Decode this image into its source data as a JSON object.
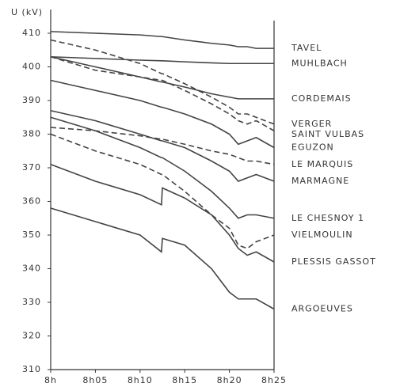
{
  "chart_data": {
    "type": "line",
    "ylabel": "U (kV)",
    "x": [
      0,
      5,
      10,
      12.4,
      12.5,
      15,
      18,
      20,
      21,
      22,
      23,
      25
    ],
    "xlim": [
      0,
      25
    ],
    "xticks": [
      {
        "value": 0,
        "label": "8h"
      },
      {
        "value": 5,
        "label": "8h05"
      },
      {
        "value": 10,
        "label": "8h10"
      },
      {
        "value": 15,
        "label": "8h15"
      },
      {
        "value": 20,
        "label": "8h20"
      },
      {
        "value": 25,
        "label": "8h25"
      }
    ],
    "ylim": [
      310,
      410
    ],
    "yticks": [
      310,
      320,
      330,
      340,
      350,
      360,
      370,
      380,
      390,
      400,
      410
    ],
    "series": [
      {
        "name": "TAVEL",
        "color": "#444",
        "dashed": false,
        "values": [
          410.5,
          410,
          409.5,
          409,
          409,
          408,
          407,
          406.5,
          406,
          406,
          405.5,
          405.5
        ]
      },
      {
        "name": "MUHLBACH",
        "color": "#444",
        "dashed": false,
        "values": [
          403,
          402.5,
          402,
          401.8,
          401.8,
          401.5,
          401.2,
          401,
          401,
          401,
          401,
          401
        ]
      },
      {
        "name": "CORDEMAIS",
        "color": "#444",
        "dashed": false,
        "values": [
          403,
          400,
          397,
          395.5,
          395.5,
          394,
          392,
          391,
          390.5,
          390.5,
          390.5,
          390.5
        ]
      },
      {
        "name": "VERGER",
        "color": "#444",
        "dashed": true,
        "values": [
          408,
          405,
          401,
          398,
          398,
          395,
          391,
          388,
          386,
          386,
          385,
          383
        ]
      },
      {
        "name": "SAINT VULBAS",
        "color": "#444",
        "dashed": true,
        "values": [
          403,
          399,
          397,
          396,
          396,
          393,
          389,
          386,
          384,
          383,
          384,
          381
        ]
      },
      {
        "name": "EGUZON",
        "color": "#444",
        "dashed": false,
        "values": [
          396,
          393,
          390,
          388,
          388,
          386,
          383,
          380,
          377,
          378,
          379,
          376
        ]
      },
      {
        "name": "LE MARQUIS",
        "color": "#444",
        "dashed": true,
        "values": [
          382,
          381,
          379.5,
          378.5,
          378.5,
          377,
          375,
          374,
          373,
          372,
          372,
          371
        ]
      },
      {
        "name": "MARMAGNE",
        "color": "#444",
        "dashed": false,
        "values": [
          387,
          384,
          380,
          378,
          378,
          376,
          372,
          369,
          366,
          367,
          368,
          366
        ]
      },
      {
        "name": "LE CHESNOY 1",
        "color": "#444",
        "dashed": false,
        "values": [
          385,
          381,
          376,
          373,
          373,
          369,
          363,
          358,
          355,
          356,
          356,
          355
        ]
      },
      {
        "name": "VIELMOULIN",
        "color": "#444",
        "dashed": true,
        "values": [
          380,
          375,
          371,
          368,
          368,
          363,
          356,
          352,
          347,
          346,
          348,
          350
        ]
      },
      {
        "name": "PLESSIS GASSOT",
        "color": "#444",
        "dashed": false,
        "values": [
          371,
          366,
          362,
          359,
          364,
          361,
          356,
          350,
          346,
          344,
          345,
          342
        ]
      },
      {
        "name": "ARGOEUVES",
        "color": "#444",
        "dashed": false,
        "values": [
          358,
          354,
          350,
          345,
          349,
          347,
          340,
          333,
          331,
          331,
          331,
          328
        ]
      }
    ]
  }
}
